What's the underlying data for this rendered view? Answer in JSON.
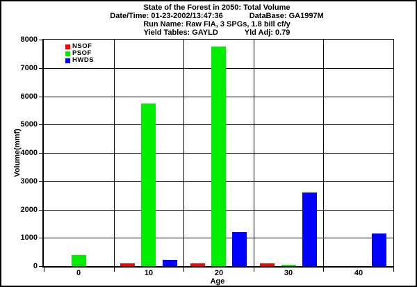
{
  "header": {
    "title": "State of the Forest in 2050: Total Volume",
    "date_time": "Date/Time: 01-23-2002/13:47:36",
    "database": "DataBase: GA1997M",
    "run_name": "Run Name: Raw FIA, 3 SPGs, 1.8 bill cf/y",
    "yield_tables": "Yield Tables: GAYLD",
    "yld_adj": "Yld Adj: 0.79"
  },
  "chart_data": {
    "type": "bar",
    "title": "State of the Forest in 2050: Total Volume",
    "xlabel": "Age",
    "ylabel": "Volume(mmf)",
    "categories": [
      "0",
      "10",
      "20",
      "30",
      "40"
    ],
    "series": [
      {
        "name": "NSOF",
        "color": "#ff0000",
        "values": [
          0,
          110,
          100,
          90,
          0
        ]
      },
      {
        "name": "PSOF",
        "color": "#00ee00",
        "values": [
          400,
          5750,
          7750,
          40,
          0
        ]
      },
      {
        "name": "HWDS",
        "color": "#0000ff",
        "values": [
          0,
          230,
          1200,
          2600,
          1150
        ]
      }
    ],
    "ylim": [
      0,
      8000
    ],
    "ytick_step": 1000,
    "grid": true,
    "legend_position": "top-left"
  }
}
